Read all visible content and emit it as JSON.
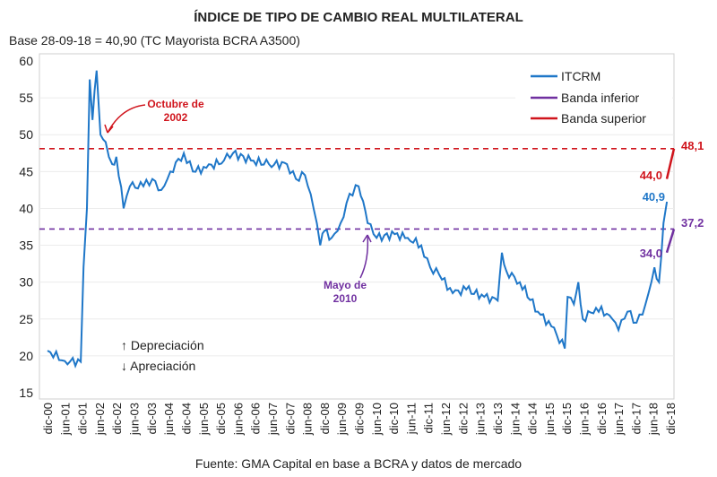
{
  "chart_data": {
    "type": "line",
    "title": "ÍNDICE DE TIPO DE CAMBIO REAL MULTILATERAL",
    "subtitle": "Base 28-09-18 = 40,90 (TC  Mayorista BCRA A3500)",
    "source": "Fuente: GMA Capital en base a BCRA y datos de mercado",
    "ylim": [
      15,
      60
    ],
    "yticks": [
      "15",
      "20",
      "25",
      "30",
      "35",
      "40",
      "45",
      "50",
      "55",
      "60"
    ],
    "xlim": [
      0,
      18
    ],
    "x_unit": "years since dic-00",
    "xticks": [
      "dic-00",
      "jun-01",
      "dic-01",
      "jun-02",
      "dic-02",
      "jun-03",
      "dic-03",
      "jun-04",
      "dic-04",
      "jun-05",
      "dic-05",
      "jun-06",
      "dic-06",
      "jun-07",
      "dic-07",
      "jun-08",
      "dic-08",
      "jun-09",
      "dic-09",
      "jun-10",
      "dic-10",
      "jun-11",
      "dic-11",
      "jun-12",
      "dic-12",
      "jun-13",
      "dic-13",
      "jun-14",
      "dic-14",
      "jun-15",
      "dic-15",
      "jun-16",
      "dic-16",
      "jun-17",
      "dic-17",
      "jun-18",
      "dic-18"
    ],
    "legend": {
      "position": "top-right",
      "entries": [
        "ITCRM",
        "Banda inferior",
        "Banda superior"
      ]
    },
    "colors": {
      "itcrm": "#1f77c8",
      "inferior": "#7030a0",
      "superior": "#d0141c"
    },
    "series": [
      {
        "name": "ITCRM",
        "x": [
          0,
          0.5,
          0.96,
          1.04,
          1.14,
          1.22,
          1.3,
          1.42,
          1.53,
          1.68,
          1.87,
          1.99,
          2.2,
          2.38,
          2.77,
          3.03,
          3.29,
          3.55,
          3.94,
          4.2,
          4.59,
          5.1,
          5.36,
          5.88,
          6.4,
          6.92,
          7.18,
          7.44,
          7.69,
          7.88,
          8.01,
          8.21,
          8.47,
          8.73,
          8.99,
          9.12,
          9.25,
          9.51,
          10.03,
          10.41,
          10.8,
          11.06,
          11.32,
          11.71,
          12.1,
          12.62,
          13.01,
          13.13,
          13.26,
          13.65,
          14.17,
          14.56,
          14.95,
          15.03,
          15.21,
          15.34,
          15.47,
          15.85,
          16.24,
          16.5,
          16.76,
          17.02,
          17.28,
          17.54,
          17.67,
          17.8,
          17.9
        ],
        "y": [
          20.7,
          19.3,
          19.2,
          32,
          40,
          57.5,
          52,
          58.7,
          50,
          49,
          46,
          47,
          40,
          43,
          43,
          44,
          42.5,
          45,
          47.5,
          45,
          45.5,
          46.5,
          47.5,
          46.5,
          46,
          46,
          44,
          44.5,
          40,
          35,
          37,
          36,
          38,
          42,
          43,
          41,
          38,
          36,
          36.5,
          36,
          35,
          32,
          31,
          28.5,
          29,
          28,
          27.5,
          34,
          31.5,
          30,
          26,
          24,
          21,
          28,
          27,
          30,
          25,
          26.5,
          25.5,
          23.5,
          26,
          24.5,
          27,
          32,
          30,
          38,
          40.9
        ]
      },
      {
        "name": "Banda inferior",
        "level": 37.2,
        "segment": [
          34.0,
          37.2
        ]
      },
      {
        "name": "Banda superior",
        "level": 48.1,
        "segment": [
          44.0,
          48.1
        ]
      }
    ],
    "labels": {
      "itcrm_last": "40,9",
      "inf_start": "34,0",
      "inf_end": "37,2",
      "sup_start": "44,0",
      "sup_end": "48,1"
    },
    "annotations": {
      "octubre": [
        "Octubre de",
        "2002"
      ],
      "mayo": [
        "Mayo de",
        "2010"
      ],
      "depreciacion": "↑ Depreciación",
      "apreciacion": "↓ Apreciación"
    }
  }
}
